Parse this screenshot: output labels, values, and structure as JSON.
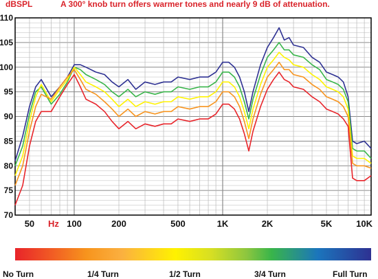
{
  "chart_data": {
    "type": "line",
    "title": "A 300° knob turn offers warmer tones and nearly 9 dB of attenuation.",
    "ylabel": "dBSPL",
    "xunit": "Hz",
    "xscale": "log",
    "xlim": [
      40,
      10000
    ],
    "ylim": [
      70,
      110
    ],
    "yticks": [
      70,
      75,
      80,
      85,
      90,
      95,
      100,
      105,
      110
    ],
    "xticks": [
      {
        "value": 50,
        "label": "50"
      },
      {
        "value": 100,
        "label": "100"
      },
      {
        "value": 200,
        "label": "200"
      },
      {
        "value": 500,
        "label": "500"
      },
      {
        "value": 1000,
        "label": "1K"
      },
      {
        "value": 2000,
        "label": "2K"
      },
      {
        "value": 5000,
        "label": "5K"
      },
      {
        "value": 10000,
        "label": "10K"
      }
    ],
    "grid": true,
    "x": [
      40,
      45,
      50,
      55,
      60,
      70,
      80,
      90,
      100,
      110,
      120,
      140,
      160,
      180,
      200,
      230,
      260,
      300,
      350,
      400,
      450,
      500,
      600,
      700,
      800,
      900,
      1000,
      1100,
      1200,
      1300,
      1400,
      1500,
      1600,
      1800,
      2000,
      2200,
      2400,
      2600,
      2800,
      3000,
      3500,
      4000,
      4500,
      5000,
      5500,
      6000,
      6500,
      7000,
      7500,
      8000,
      9000,
      10000
    ],
    "series": [
      {
        "color": "#2e3192",
        "values": [
          81,
          86,
          92,
          96,
          97.5,
          94,
          96,
          98,
          100.5,
          100.5,
          100,
          99,
          98.5,
          97,
          96,
          97.5,
          95.5,
          97,
          96.5,
          97,
          97,
          98,
          97.5,
          98,
          98,
          99,
          101,
          101,
          100,
          98,
          95,
          91,
          95,
          100.5,
          104,
          106,
          108,
          105.5,
          106,
          104.5,
          104,
          102,
          101,
          99,
          98.5,
          98,
          97,
          94,
          85,
          84.5,
          85,
          83.5
        ]
      },
      {
        "color": "#39b54a",
        "values": [
          80,
          84,
          90.5,
          95,
          96,
          92.5,
          94.5,
          97,
          100,
          99.5,
          98.5,
          97.5,
          96.5,
          95,
          94,
          95.5,
          94,
          95,
          94.5,
          95,
          95,
          96,
          95.5,
          96,
          96,
          97,
          99,
          99,
          98,
          96,
          93,
          89.5,
          93.5,
          98.5,
          102,
          103.5,
          105,
          103.5,
          103.5,
          102.5,
          102,
          100.5,
          99.5,
          97.5,
          97,
          96.5,
          95.5,
          93,
          83.5,
          83,
          83,
          81.5
        ]
      },
      {
        "color": "#fff200",
        "values": [
          78,
          82,
          89,
          94,
          96.5,
          93,
          95.5,
          97.5,
          100,
          98.5,
          97,
          96,
          95,
          93.5,
          92,
          93.5,
          92,
          93,
          92.5,
          93,
          93,
          94,
          93.5,
          94,
          94,
          95,
          97,
          97,
          96,
          94,
          91,
          87.5,
          91.5,
          96.5,
          100,
          101.5,
          103,
          102,
          101.5,
          100.5,
          100,
          98.5,
          97.5,
          96,
          95.5,
          95,
          94,
          91.5,
          82,
          81.5,
          81.5,
          80.5
        ]
      },
      {
        "color": "#f7941d",
        "values": [
          76,
          80,
          87,
          92,
          94.5,
          93.5,
          96,
          98,
          99.5,
          97.5,
          95.5,
          94.5,
          93,
          91.5,
          90,
          91.5,
          90,
          91,
          90.5,
          91,
          91,
          92,
          91.5,
          92,
          92,
          93,
          95,
          95,
          94,
          92,
          89,
          85.5,
          89.5,
          94.5,
          98,
          99.5,
          101,
          99.5,
          99.5,
          98.5,
          98,
          96.5,
          95.5,
          94,
          93.5,
          93,
          92,
          90,
          80.5,
          80,
          80,
          79.5
        ]
      },
      {
        "color": "#e8242a",
        "values": [
          72,
          76,
          84,
          89,
          91,
          91,
          94,
          96.5,
          98.5,
          96,
          93.5,
          92.5,
          91,
          89,
          87.5,
          89,
          87.5,
          88.5,
          88,
          88.5,
          88.5,
          89.5,
          89,
          89.5,
          89.5,
          90.5,
          92.5,
          92.5,
          91.5,
          89.5,
          86.5,
          83,
          87,
          92,
          95.5,
          97.5,
          99,
          97.5,
          97,
          96,
          95.5,
          94,
          93,
          91.5,
          91,
          90.5,
          89.5,
          88,
          77.5,
          77,
          77,
          78
        ]
      }
    ],
    "colorbar": {
      "labels": [
        "No Turn",
        "1/4 Turn",
        "1/2 Turn",
        "3/4 Turn",
        "Full Turn"
      ]
    }
  }
}
